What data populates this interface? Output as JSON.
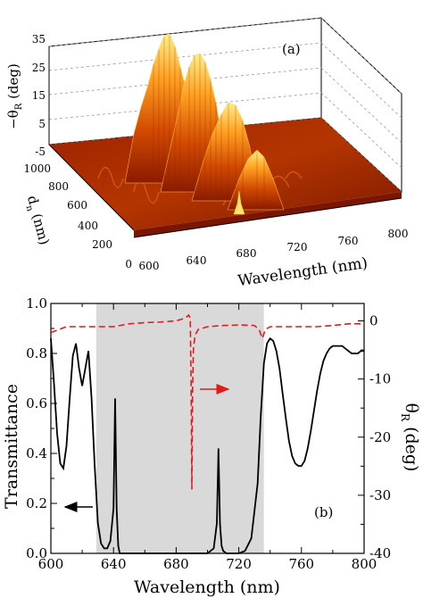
{
  "panel_a": {
    "label": "(a)",
    "zlabel_main": "−θ",
    "zlabel_sub": "R",
    "zlabel_unit": " (deg)",
    "zticks": [
      "35",
      "25",
      "15",
      "5",
      "-5"
    ],
    "ylabel_main": "d",
    "ylabel_sub": "n",
    "ylabel_unit": " (nm)",
    "yticks": [
      "1000",
      "800",
      "600",
      "400",
      "200",
      "0"
    ],
    "xlabel": "Wavelength (nm)",
    "xticks": [
      "600",
      "640",
      "680",
      "720",
      "760",
      "800"
    ]
  },
  "panel_b": {
    "label": "(b)",
    "ylabel_left": "Transmittance",
    "ylabel_right_main": "θ",
    "ylabel_right_sub": "R",
    "ylabel_right_unit": " (deg)",
    "xlabel": "Wavelength (nm)",
    "xticks": [
      "600",
      "640",
      "680",
      "720",
      "760",
      "800"
    ],
    "yticks_left": [
      "0.0",
      "0.2",
      "0.4",
      "0.6",
      "0.8",
      "1.0"
    ],
    "yticks_right": [
      "0",
      "-10",
      "-20",
      "-30",
      "-40"
    ]
  },
  "colors": {
    "transmittance": "#000000",
    "theta_r": "#e41a1c",
    "band_shade": "#d9d9d9",
    "surface_low": "#8b1a00",
    "surface_high": "#ffe36b"
  },
  "chart_data": [
    {
      "type": "area",
      "panel": "a",
      "description_axes": "3D surface",
      "x_axis": {
        "range": [
          600,
          800
        ]
      },
      "y_axis": {
        "range": [
          0,
          1000
        ]
      },
      "z_axis": {
        "range": [
          -5,
          35
        ]
      },
      "peaks": [
        {
          "wavelength": 680,
          "dn": 800,
          "neg_theta_r": 33
        },
        {
          "wavelength": 695,
          "dn": 700,
          "neg_theta_r": 25
        },
        {
          "wavelength": 710,
          "dn": 500,
          "neg_theta_r": 14
        }
      ]
    },
    {
      "type": "line",
      "panel": "b",
      "xlim": [
        600,
        800
      ],
      "ylim_left": [
        0,
        1
      ],
      "ylim_right": [
        -40,
        3
      ],
      "shaded_region": [
        629,
        736
      ],
      "series": [
        {
          "axis": "left",
          "style": "solid",
          "x": [
            600,
            602,
            604,
            606,
            608,
            610,
            612,
            614,
            616,
            618,
            620,
            622,
            624,
            626,
            628,
            630,
            632,
            634,
            636,
            638,
            640,
            641,
            642,
            643,
            644,
            646,
            650,
            660,
            670,
            680,
            690,
            700,
            704,
            706,
            707,
            708,
            709,
            710,
            712,
            716,
            720,
            724,
            728,
            732,
            734,
            736,
            738,
            740,
            742,
            744,
            746,
            748,
            750,
            752,
            754,
            756,
            758,
            760,
            762,
            764,
            766,
            768,
            770,
            772,
            774,
            776,
            778,
            780,
            782,
            784,
            786,
            788,
            790,
            792,
            794,
            796,
            798,
            800
          ],
          "y": [
            0.86,
            0.68,
            0.48,
            0.36,
            0.34,
            0.43,
            0.62,
            0.79,
            0.84,
            0.74,
            0.67,
            0.74,
            0.81,
            0.62,
            0.35,
            0.12,
            0.04,
            0.02,
            0.02,
            0.05,
            0.18,
            0.62,
            0.18,
            0.03,
            0.0,
            0.0,
            0.0,
            0.0,
            0.0,
            0.0,
            0.0,
            0.0,
            0.02,
            0.12,
            0.42,
            0.12,
            0.03,
            0.01,
            0.0,
            0.0,
            0.0,
            0.01,
            0.06,
            0.28,
            0.55,
            0.76,
            0.84,
            0.86,
            0.85,
            0.81,
            0.74,
            0.64,
            0.54,
            0.45,
            0.39,
            0.36,
            0.35,
            0.35,
            0.37,
            0.42,
            0.49,
            0.57,
            0.65,
            0.72,
            0.77,
            0.8,
            0.82,
            0.83,
            0.83,
            0.83,
            0.83,
            0.82,
            0.81,
            0.8,
            0.8,
            0.8,
            0.81,
            0.81
          ]
        },
        {
          "axis": "right",
          "style": "dashed",
          "x": [
            600,
            610,
            620,
            630,
            640,
            650,
            660,
            670,
            680,
            686,
            688,
            689,
            689.5,
            690,
            690.5,
            691,
            692,
            694,
            700,
            710,
            720,
            730,
            733,
            735,
            737,
            740,
            750,
            760,
            770,
            780,
            790,
            800
          ],
          "y": [
            -2,
            -1,
            -1,
            -1,
            -1,
            -0.5,
            -0.3,
            -0.2,
            0,
            0.5,
            1,
            0.5,
            -10,
            -29,
            -12,
            -5,
            -2.5,
            -1.5,
            -1,
            -0.8,
            -0.7,
            -0.8,
            -1.5,
            -3,
            -1.5,
            -1,
            -1,
            -1,
            -1,
            -0.8,
            -0.5,
            -0.5
          ]
        }
      ],
      "annotations": [
        {
          "type": "arrow",
          "direction": "left",
          "points_to": "left axis"
        },
        {
          "type": "arrow",
          "direction": "right",
          "points_to": "right axis"
        }
      ]
    }
  ]
}
